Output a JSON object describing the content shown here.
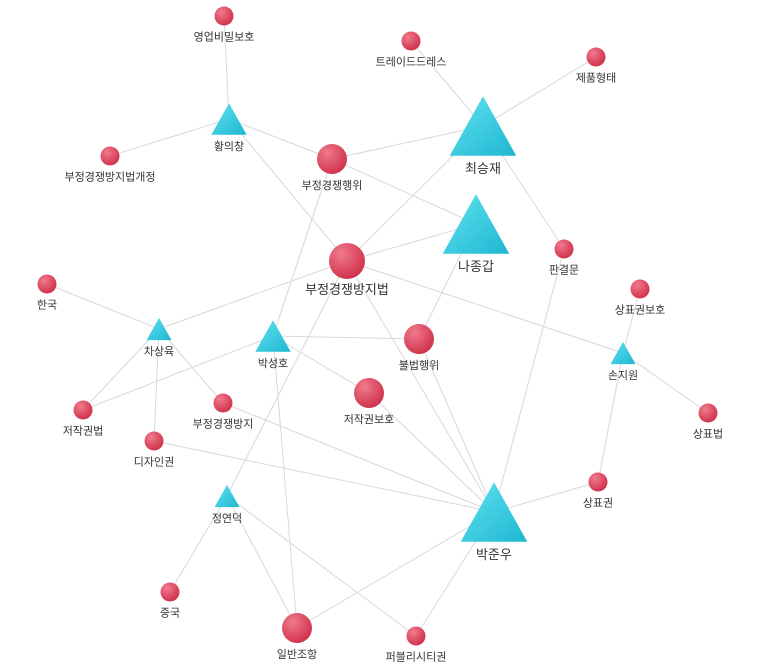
{
  "colors": {
    "keyword": "#d93a55",
    "keyword_highlight": "#f07a8c",
    "person": "#2fc4db",
    "person_highlight": "#5fe3ef",
    "edge": "#d8d8d8",
    "label": "#333333"
  },
  "legend_shapes": {
    "keyword": "circle",
    "person": "triangle"
  },
  "nodes": [
    {
      "id": "n1",
      "label": "영업비밀보호",
      "type": "keyword",
      "size": "small"
    },
    {
      "id": "n2",
      "label": "트레이드드레스",
      "type": "keyword",
      "size": "small"
    },
    {
      "id": "n3",
      "label": "제품형태",
      "type": "keyword",
      "size": "small"
    },
    {
      "id": "n4",
      "label": "황의창",
      "type": "person",
      "size": "medium"
    },
    {
      "id": "n5",
      "label": "최승재",
      "type": "person",
      "size": "large"
    },
    {
      "id": "n6",
      "label": "부정경쟁방지법개정",
      "type": "keyword",
      "size": "small"
    },
    {
      "id": "n7",
      "label": "부정경쟁행위",
      "type": "keyword",
      "size": "medium"
    },
    {
      "id": "n8",
      "label": "나종갑",
      "type": "person",
      "size": "large"
    },
    {
      "id": "n9",
      "label": "판결문",
      "type": "keyword",
      "size": "small"
    },
    {
      "id": "n10",
      "label": "부정경쟁방지법",
      "type": "keyword",
      "size": "large"
    },
    {
      "id": "n11",
      "label": "한국",
      "type": "keyword",
      "size": "small"
    },
    {
      "id": "n12",
      "label": "상표권보호",
      "type": "keyword",
      "size": "small"
    },
    {
      "id": "n13",
      "label": "차상육",
      "type": "person",
      "size": "small"
    },
    {
      "id": "n14",
      "label": "박성호",
      "type": "person",
      "size": "medium"
    },
    {
      "id": "n15",
      "label": "불법행위",
      "type": "keyword",
      "size": "medium"
    },
    {
      "id": "n16",
      "label": "손지원",
      "type": "person",
      "size": "small"
    },
    {
      "id": "n17",
      "label": "저작권보호",
      "type": "keyword",
      "size": "medium"
    },
    {
      "id": "n18",
      "label": "저작권법",
      "type": "keyword",
      "size": "small"
    },
    {
      "id": "n19",
      "label": "부정경쟁방지",
      "type": "keyword",
      "size": "small"
    },
    {
      "id": "n20",
      "label": "상표법",
      "type": "keyword",
      "size": "small"
    },
    {
      "id": "n21",
      "label": "디자인권",
      "type": "keyword",
      "size": "small"
    },
    {
      "id": "n22",
      "label": "정연덕",
      "type": "person",
      "size": "small"
    },
    {
      "id": "n23",
      "label": "박준우",
      "type": "person",
      "size": "large"
    },
    {
      "id": "n24",
      "label": "상표권",
      "type": "keyword",
      "size": "small"
    },
    {
      "id": "n25",
      "label": "중국",
      "type": "keyword",
      "size": "small"
    },
    {
      "id": "n26",
      "label": "일반조항",
      "type": "keyword",
      "size": "medium"
    },
    {
      "id": "n27",
      "label": "퍼블리시티권",
      "type": "keyword",
      "size": "small"
    }
  ],
  "edges": [
    [
      "n1",
      "n4"
    ],
    [
      "n4",
      "n6"
    ],
    [
      "n4",
      "n7"
    ],
    [
      "n4",
      "n10"
    ],
    [
      "n2",
      "n5"
    ],
    [
      "n3",
      "n5"
    ],
    [
      "n5",
      "n7"
    ],
    [
      "n5",
      "n9"
    ],
    [
      "n5",
      "n10"
    ],
    [
      "n7",
      "n8"
    ],
    [
      "n10",
      "n8"
    ],
    [
      "n8",
      "n15"
    ],
    [
      "n13",
      "n11"
    ],
    [
      "n13",
      "n10"
    ],
    [
      "n13",
      "n18"
    ],
    [
      "n13",
      "n19"
    ],
    [
      "n13",
      "n21"
    ],
    [
      "n14",
      "n7"
    ],
    [
      "n14",
      "n15"
    ],
    [
      "n14",
      "n17"
    ],
    [
      "n14",
      "n18"
    ],
    [
      "n14",
      "n26"
    ],
    [
      "n16",
      "n12"
    ],
    [
      "n16",
      "n20"
    ],
    [
      "n16",
      "n24"
    ],
    [
      "n16",
      "n10"
    ],
    [
      "n23",
      "n9"
    ],
    [
      "n23",
      "n24"
    ],
    [
      "n23",
      "n10"
    ],
    [
      "n23",
      "n15"
    ],
    [
      "n23",
      "n17"
    ],
    [
      "n23",
      "n19"
    ],
    [
      "n23",
      "n21"
    ],
    [
      "n23",
      "n26"
    ],
    [
      "n23",
      "n27"
    ],
    [
      "n22",
      "n25"
    ],
    [
      "n22",
      "n26"
    ],
    [
      "n22",
      "n27"
    ],
    [
      "n22",
      "n10"
    ]
  ]
}
